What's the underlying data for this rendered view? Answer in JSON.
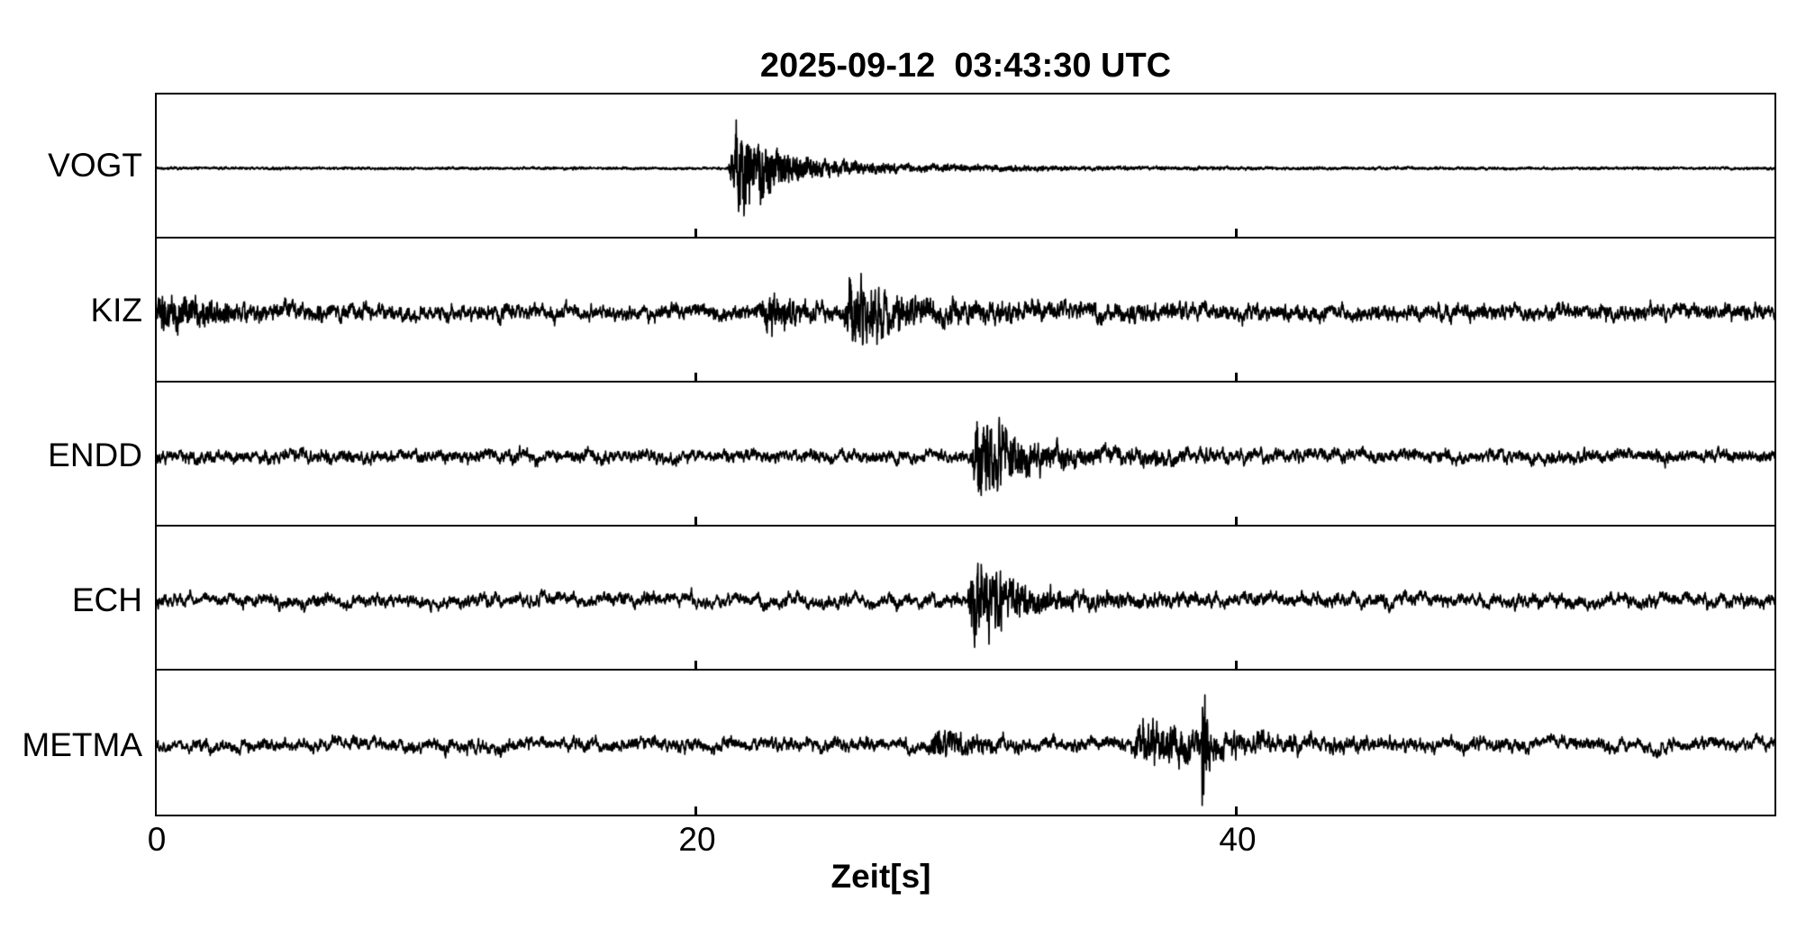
{
  "title": "2025-09-12  03:43:30 UTC",
  "x_axis": {
    "label": "Zeit[s]",
    "ticks": [
      {
        "t": 0,
        "label": "0"
      },
      {
        "t": 20,
        "label": "20"
      },
      {
        "t": 40,
        "label": "40"
      }
    ],
    "range_s": [
      0,
      60
    ],
    "unit": "s"
  },
  "colors": {
    "trace": "#000000",
    "frame": "#000000",
    "background": "#ffffff"
  },
  "chart_data": {
    "type": "line",
    "title": "2025-09-12  03:43:30 UTC",
    "xlabel": "Zeit[s]",
    "x_range": [
      0,
      60
    ],
    "x_ticks": [
      0,
      20,
      40
    ],
    "grid": false,
    "legend": false,
    "stations": [
      "VOGT",
      "KIZ",
      "ENDD",
      "ECH",
      "METMA"
    ],
    "description": "Five stacked seismogram traces (black on white); VOGT shows a strong high-frequency burst at ~21.5 s, KIZ bursts at ~22.7 s and ~25.8 s over high ambient noise, ENDD burst at ~30.5 s, ECH burst at ~30.3 s, METMA bursts at ~28.9 s and ~36.5 s with a sharp spike at ~38.8 s.",
    "series": [
      {
        "name": "VOGT",
        "seed": 1101,
        "noise": {
          "low": 0.4,
          "mid": 0.7,
          "high": 0.9
        },
        "events": [
          {
            "t": 21.55,
            "rise": 0.35,
            "decay": 1.0,
            "amp": 52,
            "hf": 0.8
          },
          {
            "t": 21.95,
            "rise": 0.3,
            "decay": 3.5,
            "amp": 9,
            "hf": 0.7
          },
          {
            "t": 22.3,
            "rise": 0.5,
            "decay": 8.0,
            "amp": 3.5,
            "hf": 0.6
          }
        ]
      },
      {
        "name": "KIZ",
        "seed": 2207,
        "noise": {
          "low": 4.5,
          "mid": 5.5,
          "high": 3.0
        },
        "events": [
          {
            "t": 0.1,
            "rise": 0.1,
            "decay": 2.2,
            "amp": 14,
            "hf": 0.45
          },
          {
            "t": 22.6,
            "rise": 0.25,
            "decay": 0.9,
            "amp": 22,
            "hf": 0.7
          },
          {
            "t": 25.7,
            "rise": 0.3,
            "decay": 1.4,
            "amp": 30,
            "hf": 0.7
          },
          {
            "t": 26.2,
            "rise": 0.3,
            "decay": 7.0,
            "amp": 7,
            "hf": 0.5
          }
        ]
      },
      {
        "name": "ENDD",
        "seed": 3313,
        "noise": {
          "low": 4.0,
          "mid": 4.5,
          "high": 2.2
        },
        "events": [
          {
            "t": 30.45,
            "rise": 0.3,
            "decay": 1.1,
            "amp": 42,
            "hf": 0.75
          },
          {
            "t": 31.0,
            "rise": 0.4,
            "decay": 3.5,
            "amp": 10,
            "hf": 0.5
          }
        ]
      },
      {
        "name": "ECH",
        "seed": 4421,
        "noise": {
          "low": 5.5,
          "mid": 4.5,
          "high": 2.0
        },
        "events": [
          {
            "t": 30.3,
            "rise": 0.25,
            "decay": 1.0,
            "amp": 44,
            "hf": 0.75
          },
          {
            "t": 30.9,
            "rise": 0.4,
            "decay": 2.5,
            "amp": 9,
            "hf": 0.5
          }
        ]
      },
      {
        "name": "METMA",
        "seed": 5531,
        "noise": {
          "low": 5.0,
          "mid": 4.5,
          "high": 2.0
        },
        "events": [
          {
            "t": 28.9,
            "rise": 0.3,
            "decay": 1.3,
            "amp": 12,
            "hf": 0.6
          },
          {
            "t": 36.5,
            "rise": 0.4,
            "decay": 2.2,
            "amp": 17,
            "hf": 0.6
          },
          {
            "t": 38.78,
            "rise": 0.06,
            "decay": 0.15,
            "amp": 70,
            "hf": 0.9
          },
          {
            "t": 37.0,
            "rise": 0.5,
            "decay": 4.0,
            "amp": 6,
            "hf": 0.5
          }
        ]
      }
    ]
  }
}
